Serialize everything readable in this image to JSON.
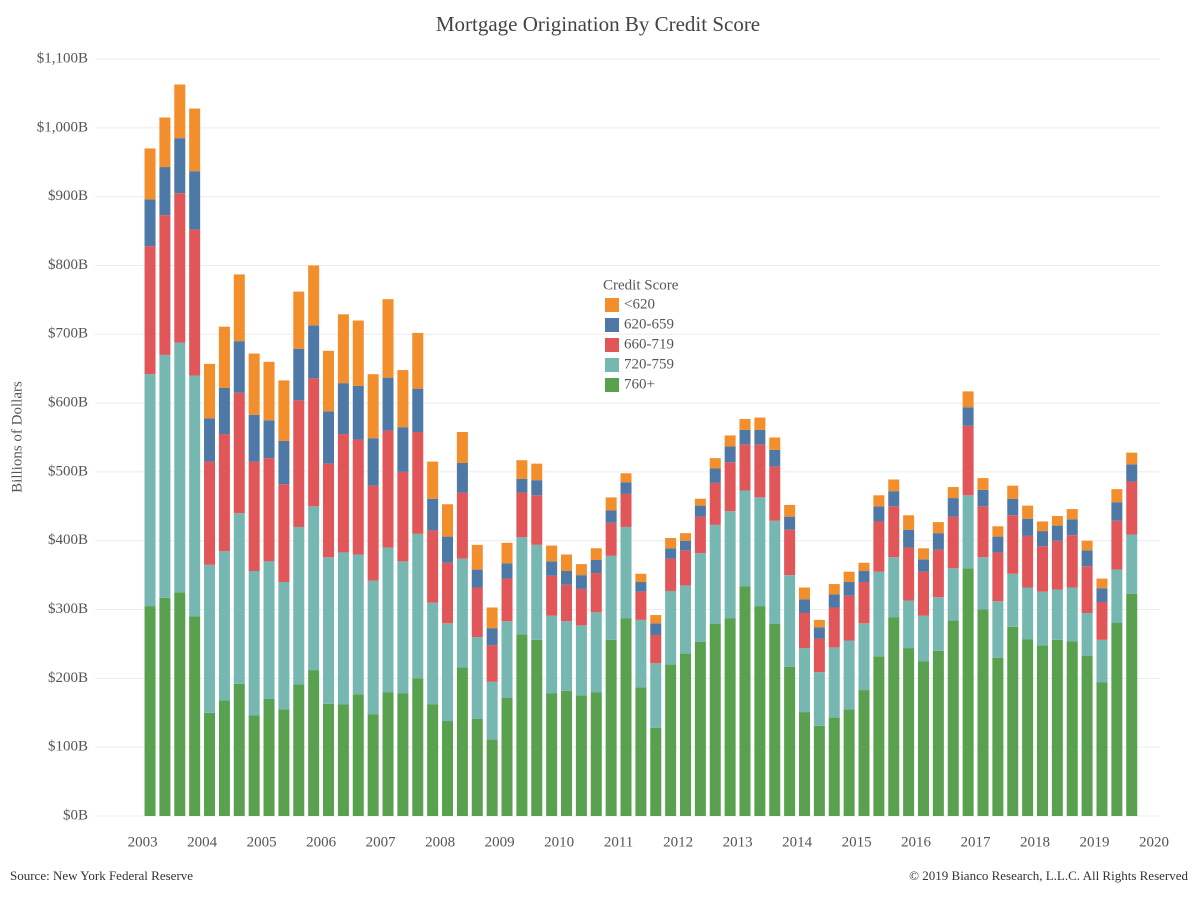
{
  "chart_data": {
    "type": "stacked_bar",
    "title": "Mortgage Origination By Credit Score",
    "y_label": "Billions of Dollars",
    "legend_title": "Credit Score",
    "source": "Source: New York Federal Reserve",
    "copyright": "© 2019 Bianco Research, L.L.C. All Rights Reserved",
    "x": [
      2003.125,
      2003.375,
      2003.625,
      2003.875,
      2004.125,
      2004.375,
      2004.625,
      2004.875,
      2005.125,
      2005.375,
      2005.625,
      2005.875,
      2006.125,
      2006.375,
      2006.625,
      2006.875,
      2007.125,
      2007.375,
      2007.625,
      2007.875,
      2008.125,
      2008.375,
      2008.625,
      2008.875,
      2009.125,
      2009.375,
      2009.625,
      2009.875,
      2010.125,
      2010.375,
      2010.625,
      2010.875,
      2011.125,
      2011.375,
      2011.625,
      2011.875,
      2012.125,
      2012.375,
      2012.625,
      2012.875,
      2013.125,
      2013.375,
      2013.625,
      2013.875,
      2014.125,
      2014.375,
      2014.625,
      2014.875,
      2015.125,
      2015.375,
      2015.625,
      2015.875,
      2016.125,
      2016.375,
      2016.625,
      2016.875,
      2017.125,
      2017.375,
      2017.625,
      2017.875,
      2018.125,
      2018.375,
      2018.625,
      2018.875,
      2019.125,
      2019.375,
      2019.625
    ],
    "series": [
      {
        "name": "760+",
        "color": "#59a14f",
        "values": [
          305,
          317,
          325,
          290,
          150,
          168,
          192,
          146,
          170,
          155,
          191,
          212,
          163,
          162,
          177,
          148,
          180,
          178,
          200,
          162,
          138,
          216,
          141,
          111,
          172,
          264,
          256,
          178,
          182,
          175,
          180,
          256,
          287,
          187,
          128,
          220,
          236,
          253,
          279,
          287,
          334,
          305,
          279,
          217,
          151,
          131,
          143,
          155,
          183,
          232,
          289,
          244,
          225,
          240,
          284,
          360,
          300,
          230,
          275,
          257,
          248,
          256,
          254,
          233,
          194,
          281,
          323
        ]
      },
      {
        "name": "720-759",
        "color": "#76b7b2",
        "values": [
          337,
          353,
          363,
          350,
          215,
          217,
          248,
          210,
          200,
          185,
          229,
          238,
          213,
          221,
          203,
          194,
          210,
          192,
          210,
          148,
          142,
          158,
          119,
          84,
          111,
          141,
          138,
          113,
          101,
          102,
          116,
          122,
          133,
          98,
          94,
          107,
          99,
          129,
          144,
          156,
          139,
          158,
          150,
          133,
          93,
          78,
          102,
          100,
          97,
          123,
          87,
          69,
          66,
          78,
          76,
          106,
          76,
          82,
          77,
          75,
          78,
          73,
          78,
          62,
          62,
          77,
          86
        ]
      },
      {
        "name": "660-719",
        "color": "#e15759",
        "values": [
          186,
          203,
          217,
          212,
          150,
          170,
          175,
          159,
          150,
          142,
          184,
          186,
          136,
          172,
          167,
          138,
          170,
          130,
          148,
          105,
          88,
          96,
          72,
          53,
          62,
          65,
          72,
          58,
          53,
          53,
          57,
          48,
          48,
          41,
          41,
          47,
          51,
          53,
          61,
          71,
          67,
          77,
          79,
          66,
          51,
          49,
          58,
          65,
          60,
          73,
          74,
          77,
          64,
          69,
          75,
          101,
          74,
          71,
          85,
          75,
          66,
          71,
          76,
          68,
          55,
          71,
          77
        ]
      },
      {
        "name": "620-659",
        "color": "#4e79a7",
        "values": [
          68,
          70,
          80,
          85,
          63,
          67,
          75,
          68,
          55,
          63,
          75,
          77,
          76,
          74,
          78,
          69,
          77,
          65,
          63,
          46,
          38,
          43,
          26,
          25,
          22,
          20,
          22,
          21,
          20,
          20,
          19,
          18,
          17,
          14,
          17,
          15,
          14,
          16,
          21,
          23,
          21,
          21,
          24,
          19,
          20,
          16,
          19,
          20,
          16,
          22,
          22,
          26,
          18,
          24,
          27,
          27,
          24,
          23,
          24,
          25,
          22,
          22,
          23,
          23,
          20,
          27,
          25
        ]
      },
      {
        "name": "<620",
        "color": "#f28e2b",
        "values": [
          74,
          72,
          78,
          91,
          79,
          89,
          97,
          89,
          85,
          88,
          83,
          87,
          88,
          100,
          95,
          93,
          114,
          83,
          81,
          54,
          47,
          45,
          36,
          30,
          30,
          27,
          24,
          23,
          24,
          16,
          17,
          19,
          13,
          12,
          12,
          15,
          11,
          10,
          15,
          16,
          16,
          18,
          18,
          17,
          17,
          11,
          15,
          15,
          12,
          16,
          17,
          21,
          16,
          16,
          16,
          23,
          17,
          15,
          19,
          19,
          14,
          14,
          15,
          14,
          14,
          19,
          17
        ]
      }
    ],
    "xlim": [
      2002.2,
      2020.1
    ],
    "xticks": [
      2003,
      2004,
      2005,
      2006,
      2007,
      2008,
      2009,
      2010,
      2011,
      2012,
      2013,
      2014,
      2015,
      2016,
      2017,
      2018,
      2019,
      2020
    ],
    "ylim": [
      0,
      1100
    ],
    "yticks": [
      {
        "value": 0,
        "label": "$0B"
      },
      {
        "value": 100,
        "label": "$100B"
      },
      {
        "value": 200,
        "label": "$200B"
      },
      {
        "value": 300,
        "label": "$300B"
      },
      {
        "value": 400,
        "label": "$400B"
      },
      {
        "value": 500,
        "label": "$500B"
      },
      {
        "value": 600,
        "label": "$600B"
      },
      {
        "value": 700,
        "label": "$700B"
      },
      {
        "value": 800,
        "label": "$800B"
      },
      {
        "value": 900,
        "label": "$900B"
      },
      {
        "value": 1000,
        "label": "$1,000B"
      },
      {
        "value": 1100,
        "label": "$1,100B"
      }
    ],
    "grid": true
  }
}
